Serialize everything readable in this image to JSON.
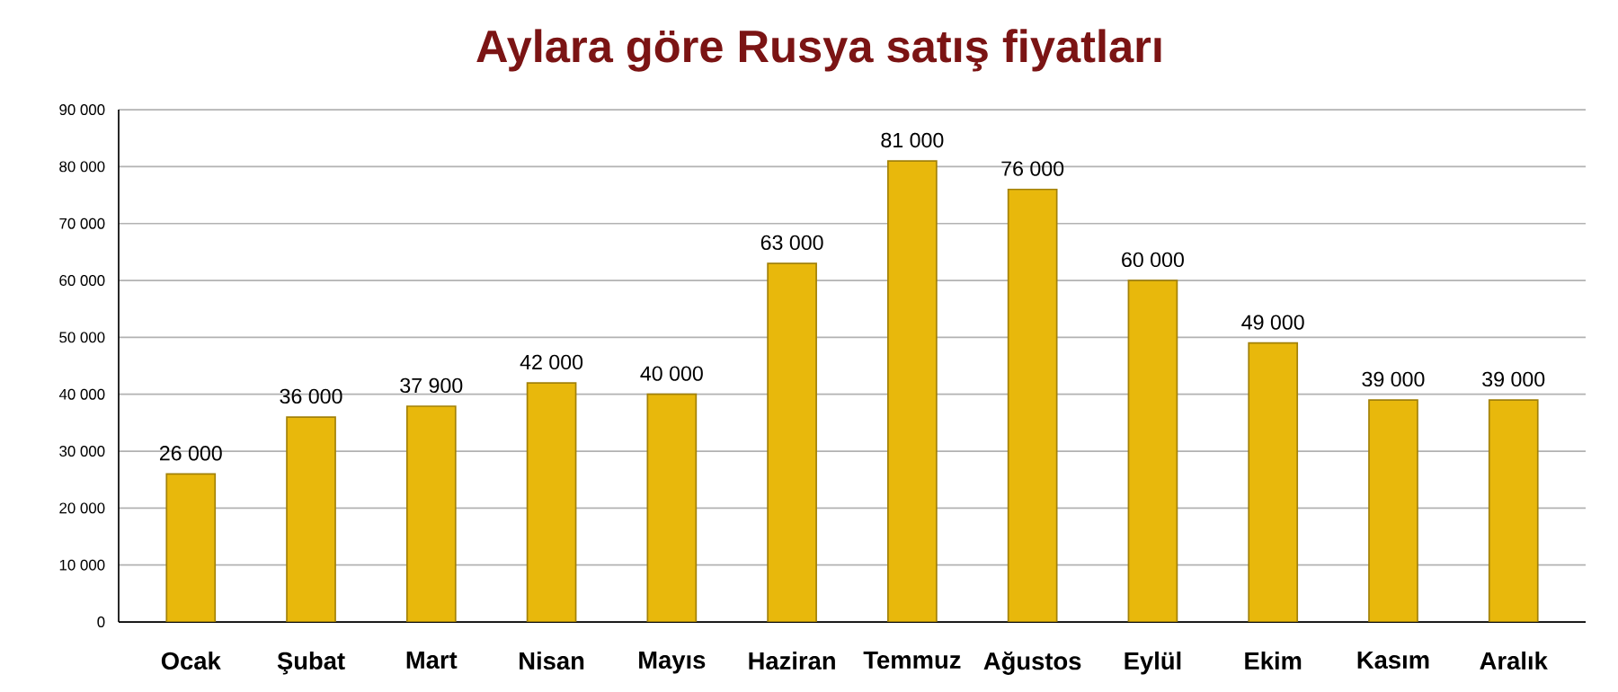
{
  "chart_data": {
    "type": "bar",
    "title": "Aylara göre Rusya satış fiyatları",
    "categories": [
      "Ocak",
      "Şubat",
      "Mart",
      "Nisan",
      "Mayıs",
      "Haziran",
      "Temmuz",
      "Ağustos",
      "Eylül",
      "Ekim",
      "Kasım",
      "Aralık"
    ],
    "values": [
      26000,
      36000,
      37900,
      42000,
      40000,
      63000,
      81000,
      76000,
      60000,
      49000,
      39000,
      39000
    ],
    "value_labels": [
      "26 000",
      "36 000",
      "37 900",
      "42 000",
      "40 000",
      "63 000",
      "81 000",
      "76 000",
      "60 000",
      "49 000",
      "39 000",
      "39 000"
    ],
    "color": "#e8b80c",
    "ylim": [
      0,
      90000
    ],
    "yticks": [
      0,
      {
        "value": 10000,
        "label": "10 000"
      },
      {
        "value": 20000,
        "label": "20 000"
      },
      {
        "value": 30000,
        "label": "30 000"
      },
      {
        "value": 40000,
        "label": "40 000"
      },
      {
        "value": 50000,
        "label": "50 000"
      },
      {
        "value": 60000,
        "label": "60 000"
      },
      {
        "value": 70000,
        "label": "70 000"
      },
      {
        "value": 80000,
        "label": "80 000"
      },
      {
        "value": 90000,
        "label": "90 000"
      }
    ],
    "grid": "y"
  }
}
